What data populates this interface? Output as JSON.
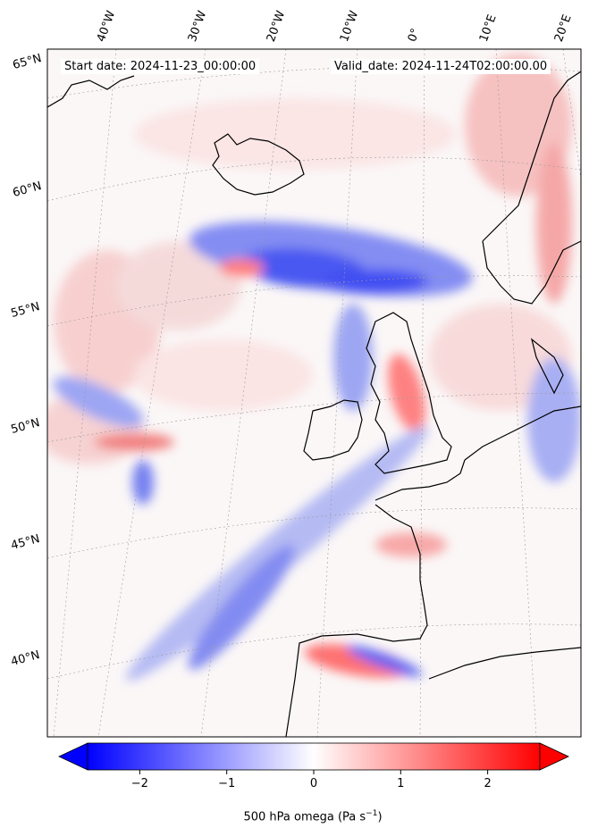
{
  "map": {
    "title_left": "Start date: 2024-11-23_00:00:00",
    "title_right": "Valid_date: 2024-11-24T02:00:00.00",
    "lon_labels": [
      "40°W",
      "30°W",
      "20°W",
      "10°W",
      "0°",
      "10°E",
      "20°E"
    ],
    "lat_labels": [
      "65°N",
      "60°N",
      "55°N",
      "50°N",
      "45°N",
      "40°N"
    ],
    "variable": "500 hPa omega",
    "colormap": "bwr",
    "colors": {
      "negative": "#0000ff",
      "zero": "#ffffff",
      "positive": "#ff0000",
      "coastline": "#000000",
      "gridline": "#999999"
    },
    "features": [
      {
        "name": "strong ascent band south of Iceland to Scotland",
        "sign": "negative"
      },
      {
        "name": "descending band over northern Britain",
        "sign": "positive"
      },
      {
        "name": "ascent band over Bay of Biscay to 40N",
        "sign": "negative"
      },
      {
        "name": "descent over northern Spain",
        "sign": "positive"
      },
      {
        "name": "descent along Norwegian coast",
        "sign": "positive"
      }
    ]
  },
  "colorbar": {
    "ticks": [
      "−2",
      "−1",
      "0",
      "1",
      "2"
    ],
    "tick_values": [
      -2,
      -1,
      0,
      1,
      2
    ],
    "range": [
      -2.6,
      2.6
    ],
    "extend": "both",
    "label": "500 hPa omega (Pa s",
    "label_sup": "−1",
    "label_end": ")"
  }
}
